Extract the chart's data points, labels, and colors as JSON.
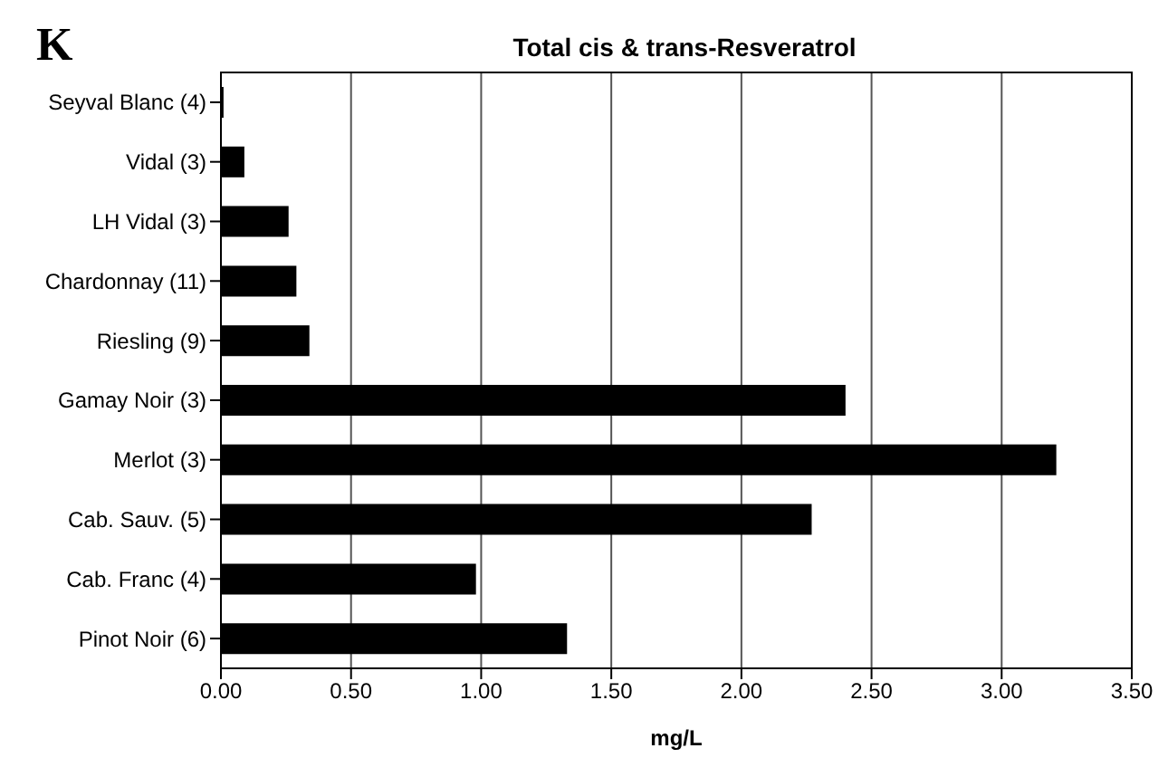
{
  "chart_data": {
    "type": "bar",
    "orientation": "horizontal",
    "title": "Total cis & trans-Resveratrol",
    "xlabel": "mg/L",
    "annotations": [
      "K"
    ],
    "categories": [
      "Seyval Blanc (4)",
      "Vidal (3)",
      "LH Vidal (3)",
      "Chardonnay (11)",
      "Riesling (9)",
      "Gamay Noir (3)",
      "Merlot (3)",
      "Cab. Sauv. (5)",
      "Cab. Franc (4)",
      "Pinot Noir (6)"
    ],
    "values": [
      0.01,
      0.09,
      0.26,
      0.29,
      0.34,
      2.4,
      3.21,
      2.27,
      0.98,
      1.33
    ],
    "color": "#000000",
    "xlim": [
      0,
      3.5
    ],
    "xticks": [
      {
        "value": 0,
        "label": "0.00"
      },
      {
        "value": 0.5,
        "label": "0.50"
      },
      {
        "value": 1,
        "label": "1.00"
      },
      {
        "value": 1.5,
        "label": "1.50"
      },
      {
        "value": 2,
        "label": "2.00"
      },
      {
        "value": 2.5,
        "label": "2.50"
      },
      {
        "value": 3,
        "label": "3.00"
      },
      {
        "value": 3.5,
        "label": "3.50"
      }
    ],
    "grid": "x"
  }
}
